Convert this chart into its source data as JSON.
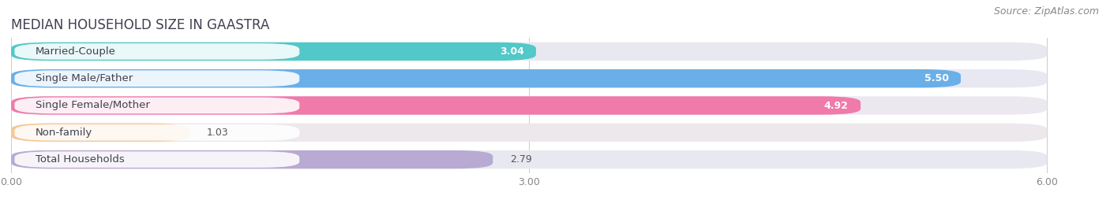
{
  "title": "MEDIAN HOUSEHOLD SIZE IN GAASTRA",
  "source": "Source: ZipAtlas.com",
  "categories": [
    "Married-Couple",
    "Single Male/Father",
    "Single Female/Mother",
    "Non-family",
    "Total Households"
  ],
  "values": [
    3.04,
    5.5,
    4.92,
    1.03,
    2.79
  ],
  "bar_colors": [
    "#52c8c8",
    "#6aafe8",
    "#f07aaa",
    "#f5c896",
    "#b8aad2"
  ],
  "bg_bar_colors": [
    "#e8e8f0",
    "#e8e8f2",
    "#ece8f0",
    "#ece8ec",
    "#e8e8f0"
  ],
  "xlim": [
    0,
    6.3
  ],
  "xticks": [
    0.0,
    3.0,
    6.0
  ],
  "xtick_labels": [
    "0.00",
    "3.00",
    "6.00"
  ],
  "background_color": "#ffffff",
  "title_fontsize": 12,
  "source_fontsize": 9,
  "label_fontsize": 9.5,
  "value_fontsize": 9,
  "tick_fontsize": 9,
  "bar_height": 0.68,
  "bar_gap": 0.32
}
